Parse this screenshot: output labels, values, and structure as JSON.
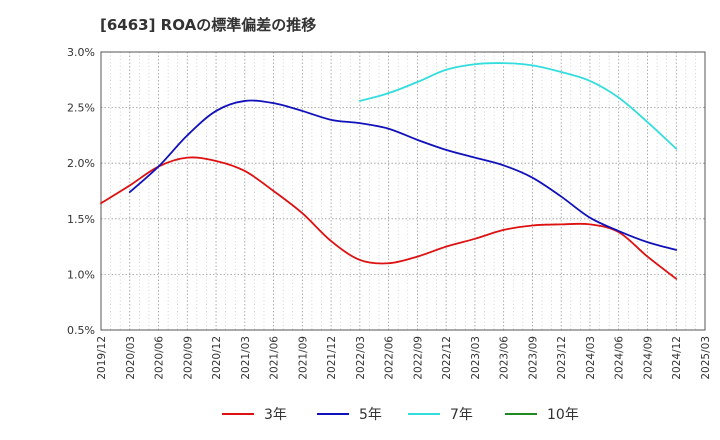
{
  "chart_data": {
    "type": "line",
    "title": "[6463]  ROAの標準偏差の推移",
    "xlabel": "",
    "ylabel": "",
    "x_ticks": [
      "2019/12",
      "2020/03",
      "2020/06",
      "2020/09",
      "2020/12",
      "2021/03",
      "2021/06",
      "2021/09",
      "2021/12",
      "2022/03",
      "2022/06",
      "2022/09",
      "2022/12",
      "2023/03",
      "2023/06",
      "2023/09",
      "2023/12",
      "2024/03",
      "2024/06",
      "2024/09",
      "2024/12",
      "2025/03"
    ],
    "y_ticks": [
      "0.5%",
      "1.0%",
      "1.5%",
      "2.0%",
      "2.5%",
      "3.0%"
    ],
    "ylim": [
      0.5,
      3.0
    ],
    "grid": true,
    "legend_position": "bottom",
    "series": [
      {
        "name": "3年",
        "color": "#dd1111",
        "points": [
          [
            "2019/12",
            1.64
          ],
          [
            "2020/03",
            1.8
          ],
          [
            "2020/06",
            1.97
          ],
          [
            "2020/09",
            2.05
          ],
          [
            "2020/12",
            2.02
          ],
          [
            "2021/03",
            1.93
          ],
          [
            "2021/06",
            1.75
          ],
          [
            "2021/09",
            1.55
          ],
          [
            "2021/12",
            1.3
          ],
          [
            "2022/03",
            1.13
          ],
          [
            "2022/06",
            1.1
          ],
          [
            "2022/09",
            1.16
          ],
          [
            "2022/12",
            1.25
          ],
          [
            "2023/03",
            1.32
          ],
          [
            "2023/06",
            1.4
          ],
          [
            "2023/09",
            1.44
          ],
          [
            "2023/12",
            1.45
          ],
          [
            "2024/03",
            1.45
          ],
          [
            "2024/06",
            1.38
          ],
          [
            "2024/09",
            1.16
          ],
          [
            "2024/12",
            0.96
          ]
        ]
      },
      {
        "name": "5年",
        "color": "#1111bb",
        "points": [
          [
            "2020/03",
            1.74
          ],
          [
            "2020/06",
            1.97
          ],
          [
            "2020/09",
            2.25
          ],
          [
            "2020/12",
            2.47
          ],
          [
            "2021/03",
            2.56
          ],
          [
            "2021/06",
            2.54
          ],
          [
            "2021/09",
            2.47
          ],
          [
            "2021/12",
            2.39
          ],
          [
            "2022/03",
            2.36
          ],
          [
            "2022/06",
            2.31
          ],
          [
            "2022/09",
            2.21
          ],
          [
            "2022/12",
            2.12
          ],
          [
            "2023/03",
            2.05
          ],
          [
            "2023/06",
            1.98
          ],
          [
            "2023/09",
            1.87
          ],
          [
            "2023/12",
            1.7
          ],
          [
            "2024/03",
            1.51
          ],
          [
            "2024/06",
            1.39
          ],
          [
            "2024/09",
            1.29
          ],
          [
            "2024/12",
            1.22
          ]
        ]
      },
      {
        "name": "7年",
        "color": "#33dddd",
        "points": [
          [
            "2022/03",
            2.56
          ],
          [
            "2022/06",
            2.63
          ],
          [
            "2022/09",
            2.73
          ],
          [
            "2022/12",
            2.84
          ],
          [
            "2023/03",
            2.89
          ],
          [
            "2023/06",
            2.9
          ],
          [
            "2023/09",
            2.88
          ],
          [
            "2023/12",
            2.82
          ],
          [
            "2024/03",
            2.74
          ],
          [
            "2024/06",
            2.59
          ],
          [
            "2024/09",
            2.37
          ],
          [
            "2024/12",
            2.13
          ]
        ]
      },
      {
        "name": "10年",
        "color": "#228822",
        "points": []
      }
    ]
  }
}
